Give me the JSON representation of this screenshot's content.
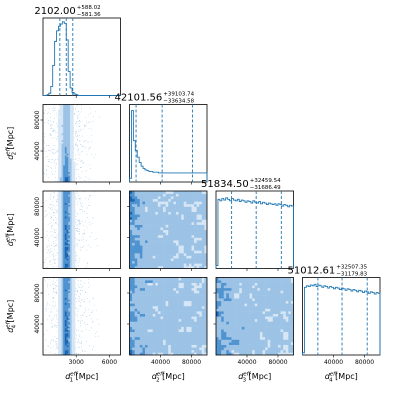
{
  "chart_data": {
    "type": "corner",
    "color": "#1f77b4",
    "contour_color": "#0b5ea8",
    "params": [
      {
        "label_base": "d",
        "label_sub": "1",
        "label_sup": "eff",
        "unit": "[Mpc]",
        "title_value": "2102.00",
        "title_plus": "+588.02",
        "title_minus": "−581.36",
        "range": [
          0,
          7000
        ],
        "ticks": [
          3000,
          6000
        ],
        "tick_labels": [
          "3000",
          "6000"
        ],
        "quantiles": [
          1520.64,
          2102.0,
          2690.02
        ],
        "hist": [
          0,
          0,
          0.01,
          0.03,
          0.12,
          0.4,
          0.72,
          0.86,
          0.92,
          0.95,
          0.98,
          0.96,
          0.74,
          0.32,
          0.1,
          0.04,
          0.02,
          0.01,
          0,
          0,
          0,
          0,
          0,
          0,
          0,
          0,
          0,
          0,
          0,
          0,
          0,
          0,
          0,
          0,
          0,
          0,
          0,
          0,
          0,
          0
        ]
      },
      {
        "label_base": "d",
        "label_sub": "2",
        "label_sup": "eff",
        "unit": "[Mpc]",
        "title_value": "42101.56",
        "title_plus": "+39103.74",
        "title_minus": "−33634.58",
        "range": [
          0,
          100000
        ],
        "ticks": [
          40000,
          80000
        ],
        "tick_labels": [
          "40000",
          "80000"
        ],
        "quantiles": [
          8466.98,
          42101.56,
          81205.3
        ],
        "hist": [
          0.05,
          0.95,
          0.55,
          0.42,
          0.33,
          0.26,
          0.21,
          0.18,
          0.16,
          0.15,
          0.14,
          0.14,
          0.13,
          0.13,
          0.13,
          0.12,
          0.12,
          0.12,
          0.12,
          0.12,
          0.12,
          0.12,
          0.12,
          0.12,
          0.12,
          0.12,
          0.12,
          0.12,
          0.12,
          0.12,
          0.12,
          0.12,
          0.12,
          0.12,
          0.12,
          0.12,
          0.12,
          0.12,
          0.12,
          0.12
        ]
      },
      {
        "label_base": "d",
        "label_sub": "3",
        "label_sup": "eff",
        "unit": "[Mpc]",
        "title_value": "51834.50",
        "title_plus": "+32459.54",
        "title_minus": "−31686.49",
        "range": [
          0,
          100000
        ],
        "ticks": [
          40000,
          80000
        ],
        "tick_labels": [
          "40000",
          "80000"
        ],
        "quantiles": [
          20148.01,
          51834.5,
          84294.04
        ],
        "hist": [
          0.04,
          0.92,
          0.9,
          0.93,
          0.91,
          0.94,
          0.92,
          0.9,
          0.93,
          0.91,
          0.9,
          0.92,
          0.89,
          0.91,
          0.9,
          0.88,
          0.9,
          0.89,
          0.87,
          0.9,
          0.88,
          0.87,
          0.89,
          0.86,
          0.88,
          0.87,
          0.85,
          0.87,
          0.86,
          0.85,
          0.86,
          0.84,
          0.86,
          0.85,
          0.83,
          0.85,
          0.84,
          0.82,
          0.84,
          0.83
        ]
      },
      {
        "label_base": "d",
        "label_sub": "4",
        "label_sup": "eff",
        "unit": "[Mpc]",
        "title_value": "51012.61",
        "title_plus": "+32507.35",
        "title_minus": "−31179.83",
        "range": [
          0,
          100000
        ],
        "ticks": [
          40000,
          80000
        ],
        "tick_labels": [
          "40000",
          "80000"
        ],
        "quantiles": [
          19832.78,
          51012.61,
          83519.96
        ],
        "hist": [
          0.03,
          0.9,
          0.92,
          0.91,
          0.93,
          0.92,
          0.94,
          0.91,
          0.93,
          0.92,
          0.9,
          0.92,
          0.91,
          0.89,
          0.91,
          0.9,
          0.88,
          0.9,
          0.89,
          0.87,
          0.89,
          0.88,
          0.86,
          0.88,
          0.87,
          0.85,
          0.87,
          0.86,
          0.84,
          0.86,
          0.85,
          0.83,
          0.85,
          0.84,
          0.82,
          0.84,
          0.83,
          0.81,
          0.83,
          0.82
        ]
      }
    ],
    "contour_levels": [
      0.118,
      0.393,
      0.675,
      0.865
    ]
  }
}
